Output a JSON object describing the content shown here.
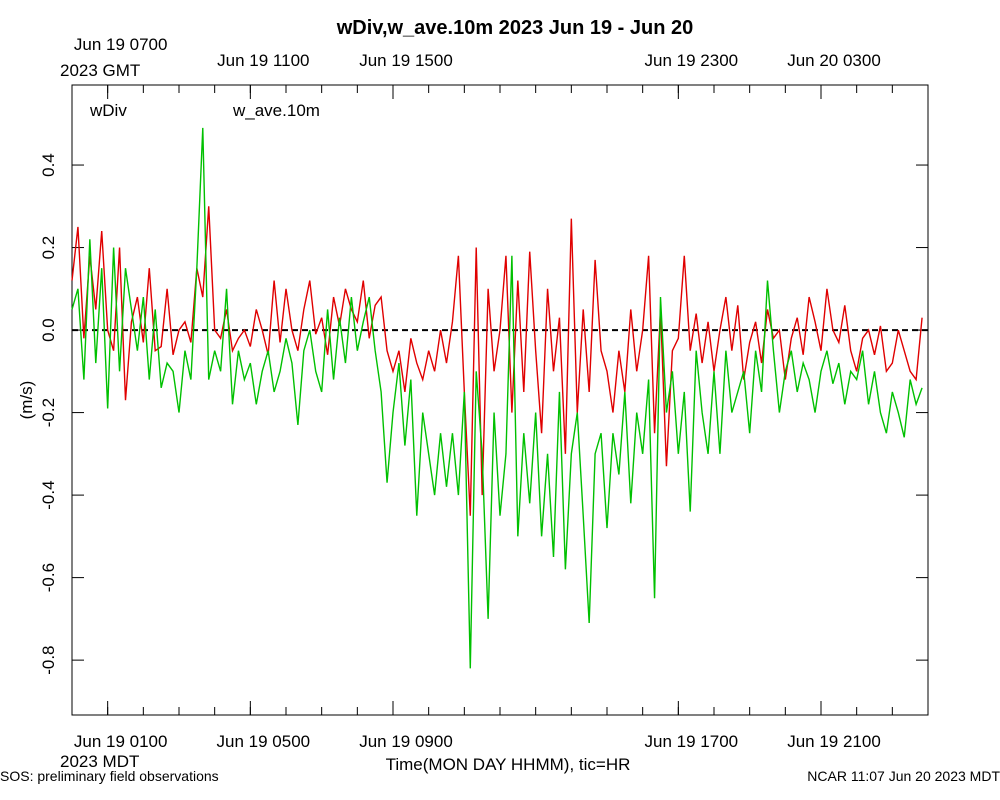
{
  "chart_data": {
    "type": "line",
    "title": "wDiv,w_ave.10m 2023 Jun 19 - Jun 20",
    "y_label": "(m/s)",
    "x_label": "Time(MON DAY HHMM), tic=HR",
    "bottom_timezone": "2023 MDT",
    "top_timezone": "2023 GMT",
    "footer_left": "SOS: preliminary field observations",
    "footer_right": "NCAR 11:07 Jun 20 2023 MDT",
    "xlim": [
      0,
      1440
    ],
    "ylim": [
      -0.933,
      0.594
    ],
    "xticks": [
      {
        "value": 60,
        "label": "Jun 19 0100"
      },
      {
        "value": 300,
        "label": "Jun 19 0500"
      },
      {
        "value": 540,
        "label": "Jun 19 0900"
      },
      {
        "value": 1020,
        "label": "Jun 19 1700"
      },
      {
        "value": 1260,
        "label": "Jun 19 2100"
      }
    ],
    "top_xticks": [
      {
        "value": 60,
        "label": "Jun 19 0700"
      },
      {
        "value": 300,
        "label": "Jun 19 1100"
      },
      {
        "value": 540,
        "label": "Jun 19 1500"
      },
      {
        "value": 1020,
        "label": "Jun 19 2300"
      },
      {
        "value": 1260,
        "label": "Jun 20 0300"
      }
    ],
    "minor_xticks": [
      0,
      60,
      120,
      180,
      240,
      300,
      360,
      420,
      480,
      540,
      600,
      660,
      720,
      780,
      840,
      900,
      960,
      1020,
      1080,
      1140,
      1200,
      1260,
      1320,
      1380,
      1440
    ],
    "yticks": [
      {
        "value": -0.8,
        "label": "-0.8"
      },
      -0.6,
      -0.4,
      -0.2,
      {
        "value": 0,
        "label": "0.0"
      },
      0.2,
      0.4
    ],
    "hline": 0,
    "x": [
      0,
      10,
      20,
      30,
      40,
      50,
      60,
      70,
      80,
      90,
      100,
      110,
      120,
      130,
      140,
      150,
      160,
      170,
      180,
      190,
      200,
      210,
      220,
      230,
      240,
      250,
      260,
      270,
      280,
      290,
      300,
      310,
      320,
      330,
      340,
      350,
      360,
      370,
      380,
      390,
      400,
      410,
      420,
      430,
      440,
      450,
      460,
      470,
      480,
      490,
      500,
      510,
      520,
      530,
      540,
      550,
      560,
      570,
      580,
      590,
      600,
      610,
      620,
      630,
      640,
      650,
      660,
      670,
      680,
      690,
      700,
      710,
      720,
      730,
      740,
      750,
      760,
      770,
      780,
      790,
      800,
      810,
      820,
      830,
      840,
      850,
      860,
      870,
      880,
      890,
      900,
      910,
      920,
      930,
      940,
      950,
      960,
      970,
      980,
      990,
      1000,
      1010,
      1020,
      1030,
      1040,
      1050,
      1060,
      1070,
      1080,
      1090,
      1100,
      1110,
      1120,
      1130,
      1140,
      1150,
      1160,
      1170,
      1180,
      1190,
      1200,
      1210,
      1220,
      1230,
      1240,
      1250,
      1260,
      1270,
      1280,
      1290,
      1300,
      1310,
      1320,
      1330,
      1340,
      1350,
      1360,
      1370,
      1380,
      1390,
      1400,
      1410,
      1420,
      1430
    ],
    "series": [
      {
        "name": "wDiv",
        "color": "#e00000",
        "values": [
          0.12,
          0.25,
          -0.02,
          0.18,
          0.05,
          0.24,
          0.0,
          -0.05,
          0.2,
          -0.17,
          0.02,
          0.08,
          -0.03,
          0.15,
          -0.05,
          -0.04,
          0.1,
          -0.06,
          0.0,
          0.02,
          -0.03,
          0.15,
          0.08,
          0.3,
          0.0,
          -0.02,
          0.05,
          -0.05,
          -0.02,
          0.0,
          -0.04,
          0.05,
          0.0,
          -0.06,
          0.12,
          -0.03,
          0.1,
          0.0,
          -0.05,
          0.05,
          0.12,
          -0.01,
          0.03,
          -0.06,
          0.08,
          0.01,
          0.1,
          0.05,
          0.02,
          0.12,
          -0.02,
          0.06,
          0.08,
          -0.05,
          -0.1,
          -0.05,
          -0.15,
          -0.02,
          -0.08,
          -0.12,
          -0.05,
          -0.1,
          0.0,
          -0.08,
          0.02,
          0.18,
          -0.15,
          -0.45,
          0.2,
          -0.4,
          0.1,
          -0.1,
          0.0,
          0.18,
          -0.2,
          0.12,
          -0.15,
          0.19,
          -0.05,
          -0.25,
          0.1,
          -0.1,
          0.03,
          -0.3,
          0.27,
          -0.2,
          0.05,
          -0.15,
          0.17,
          -0.05,
          -0.1,
          -0.2,
          -0.05,
          -0.15,
          0.05,
          -0.1,
          0.0,
          0.18,
          -0.25,
          0.05,
          -0.33,
          -0.05,
          -0.02,
          0.18,
          -0.05,
          0.04,
          -0.08,
          0.02,
          -0.1,
          0.0,
          0.08,
          -0.05,
          0.06,
          -0.12,
          -0.03,
          0.02,
          -0.08,
          0.05,
          -0.02,
          0.0,
          -0.12,
          -0.02,
          0.03,
          -0.06,
          0.08,
          0.02,
          -0.05,
          0.1,
          0.0,
          -0.03,
          0.06,
          -0.05,
          -0.1,
          -0.02,
          0.0,
          -0.06,
          0.01,
          -0.1,
          -0.08,
          0.0,
          -0.05,
          -0.1,
          -0.12,
          0.03
        ]
      },
      {
        "name": "w_ave.10m",
        "color": "#00c000",
        "values": [
          0.05,
          0.1,
          -0.12,
          0.22,
          -0.08,
          0.15,
          -0.19,
          0.2,
          -0.1,
          0.15,
          0.05,
          -0.05,
          0.08,
          -0.12,
          0.05,
          -0.14,
          -0.08,
          -0.1,
          -0.2,
          -0.05,
          -0.12,
          0.15,
          0.49,
          -0.12,
          -0.05,
          -0.1,
          0.1,
          -0.18,
          -0.05,
          -0.12,
          -0.08,
          -0.18,
          -0.1,
          -0.05,
          -0.15,
          -0.1,
          -0.02,
          -0.08,
          -0.23,
          -0.05,
          0.0,
          -0.1,
          -0.15,
          0.05,
          -0.12,
          0.03,
          -0.08,
          0.08,
          -0.05,
          0.02,
          0.08,
          -0.05,
          -0.15,
          -0.37,
          -0.2,
          -0.08,
          -0.28,
          -0.12,
          -0.45,
          -0.2,
          -0.3,
          -0.4,
          -0.25,
          -0.38,
          -0.25,
          -0.4,
          -0.15,
          -0.82,
          -0.1,
          -0.3,
          -0.7,
          -0.2,
          -0.45,
          -0.3,
          0.18,
          -0.5,
          -0.25,
          -0.42,
          -0.2,
          -0.5,
          -0.3,
          -0.55,
          -0.15,
          -0.58,
          -0.3,
          -0.2,
          -0.45,
          -0.71,
          -0.3,
          -0.25,
          -0.48,
          -0.25,
          -0.35,
          -0.15,
          -0.42,
          -0.2,
          -0.3,
          -0.12,
          -0.65,
          0.08,
          -0.2,
          -0.1,
          -0.3,
          -0.15,
          -0.44,
          -0.05,
          -0.2,
          -0.3,
          -0.1,
          -0.3,
          -0.05,
          -0.2,
          -0.15,
          -0.1,
          -0.25,
          -0.05,
          -0.15,
          0.12,
          -0.05,
          -0.2,
          -0.1,
          -0.05,
          -0.15,
          -0.08,
          -0.12,
          -0.2,
          -0.1,
          -0.05,
          -0.13,
          -0.08,
          -0.18,
          -0.1,
          -0.12,
          -0.05,
          -0.18,
          -0.1,
          -0.2,
          -0.25,
          -0.15,
          -0.2,
          -0.26,
          -0.12,
          -0.18,
          -0.14
        ]
      }
    ]
  }
}
